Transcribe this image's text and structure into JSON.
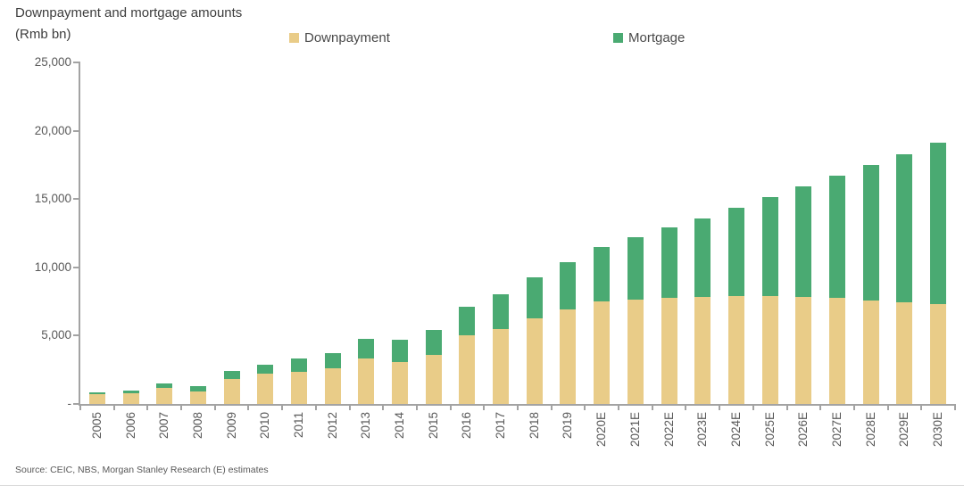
{
  "header": {
    "title": "Downpayment and mortgage amounts",
    "unit_label": "(Rmb bn)"
  },
  "legend": {
    "items": [
      {
        "label": "Downpayment",
        "color": "#e9cc88"
      },
      {
        "label": "Mortgage",
        "color": "#4aaa72"
      }
    ]
  },
  "source": "Source: CEIC, NBS, Morgan Stanley Research (E) estimates",
  "colors": {
    "downpayment": "#e9cc88",
    "mortgage": "#4aaa72",
    "axis": "#a3a3a3",
    "text": "#595959"
  },
  "chart_data": {
    "type": "bar",
    "stacked": true,
    "title": "Downpayment and mortgage amounts",
    "ylabel": "(Rmb bn)",
    "xlabel": "",
    "grid": false,
    "legend_position": "top",
    "ylim": [
      0,
      25000
    ],
    "y_ticks": [
      0,
      5000,
      10000,
      15000,
      20000,
      25000
    ],
    "y_tick_labels": [
      "-",
      "5,000",
      "10,000",
      "15,000",
      "20,000",
      "25,000"
    ],
    "categories": [
      "2005",
      "2006",
      "2007",
      "2008",
      "2009",
      "2010",
      "2011",
      "2012",
      "2013",
      "2014",
      "2015",
      "2016",
      "2017",
      "2018",
      "2019",
      "2020E",
      "2021E",
      "2022E",
      "2023E",
      "2024E",
      "2025E",
      "2026E",
      "2027E",
      "2028E",
      "2029E",
      "2030E"
    ],
    "series": [
      {
        "name": "Downpayment",
        "color": "#e9cc88",
        "values": [
          700,
          800,
          1200,
          900,
          1850,
          2200,
          2350,
          2600,
          3350,
          3100,
          3600,
          5000,
          5500,
          6300,
          6950,
          7500,
          7650,
          7800,
          7850,
          7900,
          7900,
          7850,
          7800,
          7600,
          7450,
          7300
        ]
      },
      {
        "name": "Mortgage",
        "color": "#4aaa72",
        "values": [
          180,
          200,
          300,
          400,
          550,
          650,
          950,
          1100,
          1450,
          1600,
          1850,
          2100,
          2500,
          2950,
          3450,
          4000,
          4550,
          5100,
          5750,
          6450,
          7250,
          8050,
          8900,
          9900,
          10850,
          11800
        ]
      }
    ]
  }
}
